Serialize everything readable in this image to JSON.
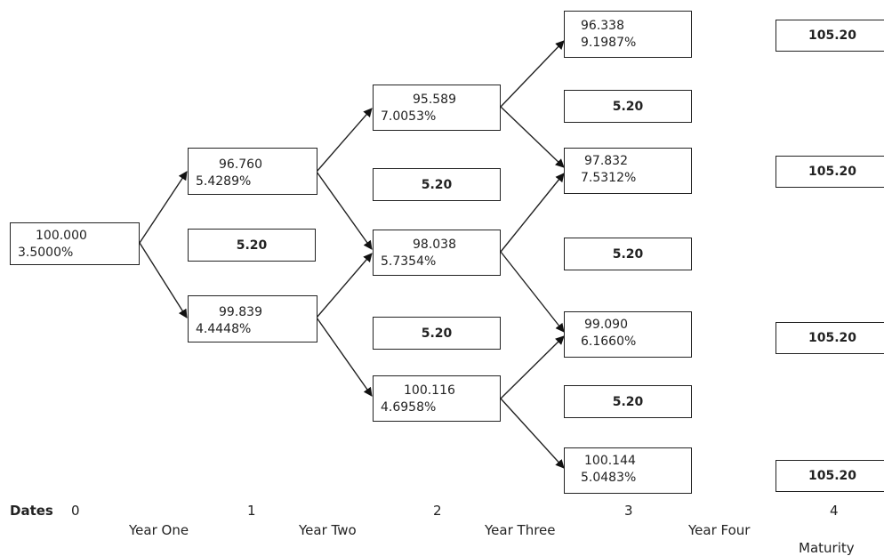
{
  "nodes": {
    "n0": {
      "price": "100.000",
      "rate": "3.5000%"
    },
    "n1u": {
      "price": "96.760",
      "rate": "5.4289%"
    },
    "n1d": {
      "price": "99.839",
      "rate": "4.4448%"
    },
    "n2u": {
      "price": "95.589",
      "rate": "7.0053%"
    },
    "n2m": {
      "price": "98.038",
      "rate": "5.7354%"
    },
    "n2d": {
      "price": "100.116",
      "rate": "4.6958%"
    },
    "n3a": {
      "price": "96.338",
      "rate": "9.1987%"
    },
    "n3b": {
      "price": "97.832",
      "rate": "7.5312%"
    },
    "n3c": {
      "price": "99.090",
      "rate": "6.1660%"
    },
    "n3d": {
      "price": "100.144",
      "rate": "5.0483%"
    }
  },
  "cash_flows": {
    "c1": "5.20",
    "c2a": "5.20",
    "c2b": "5.20",
    "c3a": "5.20",
    "c3b": "5.20",
    "c3c": "5.20",
    "c4a": "105.20",
    "c4b": "105.20",
    "c4c": "105.20",
    "c4d": "105.20"
  },
  "axis": {
    "dates_label": "Dates",
    "d0": "0",
    "d1": "1",
    "d2": "2",
    "d3": "3",
    "d4": "4",
    "year1": "Year One",
    "year2": "Year Two",
    "year3": "Year Three",
    "year4": "Year Four",
    "maturity": "Maturity"
  }
}
